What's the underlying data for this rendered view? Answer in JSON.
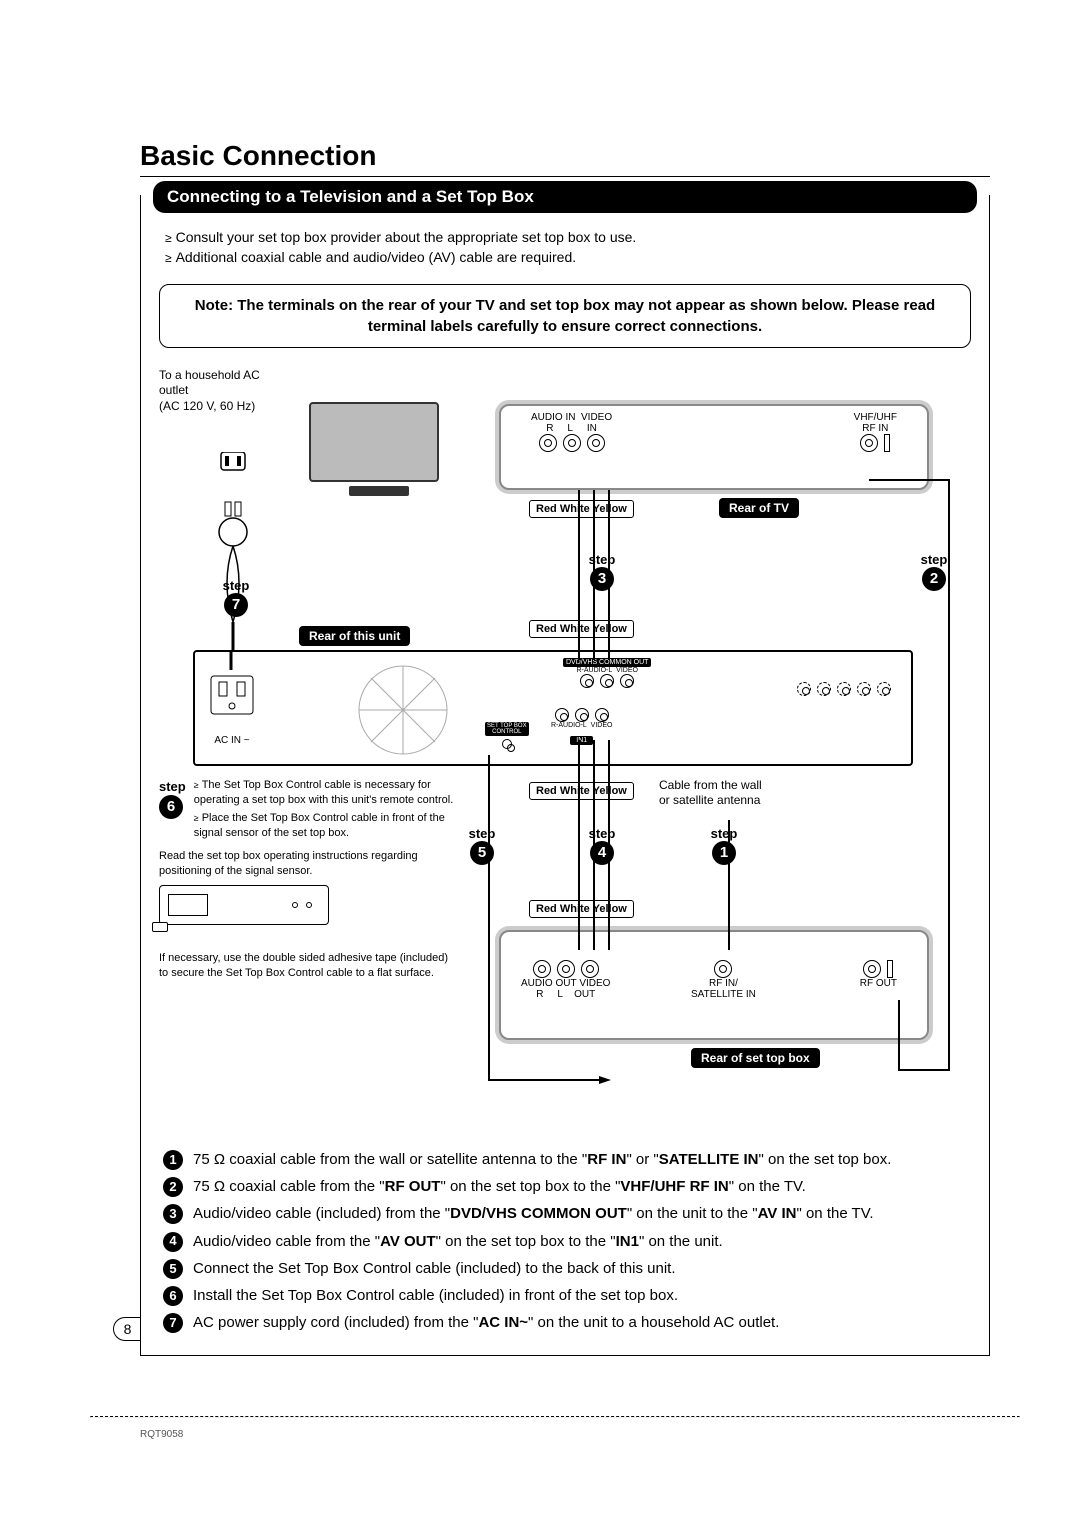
{
  "title": "Basic Connection",
  "banner": "Connecting to a Television and a Set Top Box",
  "intro": [
    "Consult your set top box provider about the appropriate set top box to use.",
    "Additional coaxial cable and audio/video (AV) cable are required."
  ],
  "note": "Note: The terminals on the rear of your TV and set top box may not appear as shown below. Please read terminal labels carefully to ensure correct connections.",
  "labels": {
    "ac_outlet_1": "To a household AC",
    "ac_outlet_2": "outlet",
    "ac_outlet_3": "(AC 120 V, 60 Hz)",
    "audio_in": "AUDIO IN",
    "video_in": "VIDEO",
    "in": "IN",
    "r": "R",
    "l": "L",
    "vhf_uhf": "VHF/UHF",
    "rf_in": "RF IN",
    "rear_tv": "Rear of TV",
    "rear_unit": "Rear of this unit",
    "rear_stb": "Rear of set top box",
    "rwy": "Red White Yellow",
    "step": "step",
    "ac_in_unit": "AC IN ~",
    "common_out": "DVD/VHS COMMON OUT",
    "r_audio_l": "R-AUDIO-L",
    "video": "VIDEO",
    "in1": "IN1",
    "stb_ctrl": "SET TOP BOX",
    "stb_ctrl2": "CONTROL",
    "cable_wall_1": "Cable from the wall",
    "cable_wall_2": "or satellite antenna",
    "audio_out": "AUDIO OUT",
    "video_out": "VIDEO",
    "out": "OUT",
    "rf_in_sat": "RF IN/",
    "sat_in": "SATELLITE IN",
    "rf_out": "RF OUT"
  },
  "step6": {
    "b1": "The Set Top Box Control cable is necessary for operating a set top box with this unit's remote control.",
    "b2": "Place the Set Top Box Control cable in front of the signal sensor of the set top box.",
    "read": "Read the set top box operating instructions regarding positioning of the signal sensor.",
    "tape": "If necessary, use the double sided adhesive tape (included) to secure the Set Top Box Control cable to a flat surface."
  },
  "steps": [
    {
      "n": "1",
      "html": "75 Ω coaxial cable from the wall or satellite antenna to the \"<b>RF IN</b>\" or \"<b>SATELLITE IN</b>\" on the set top box."
    },
    {
      "n": "2",
      "html": "75 Ω coaxial cable from the \"<b>RF OUT</b>\" on the set top box to the \"<b>VHF/UHF RF IN</b>\" on the TV."
    },
    {
      "n": "3",
      "html": "Audio/video cable (included) from the \"<b>DVD/VHS COMMON OUT</b>\" on the unit to the \"<b>AV IN</b>\" on the TV."
    },
    {
      "n": "4",
      "html": "Audio/video cable from the \"<b>AV OUT</b>\" on the set top box to the \"<b>IN1</b>\" on the unit."
    },
    {
      "n": "5",
      "html": "Connect the Set Top Box Control cable (included) to the back of this unit."
    },
    {
      "n": "6",
      "html": "Install the Set Top Box Control cable (included) in front of the set top box."
    },
    {
      "n": "7",
      "html": "AC power supply cord (included) from the \"<b>AC IN~</b>\" on the unit to a household AC outlet."
    }
  ],
  "page_number": "8",
  "doc_id": "RQT9058",
  "colors": {
    "text": "#000000",
    "background": "#ffffff",
    "panel_shadow": "#cccccc",
    "tv_screen": "#bbbbbb"
  }
}
